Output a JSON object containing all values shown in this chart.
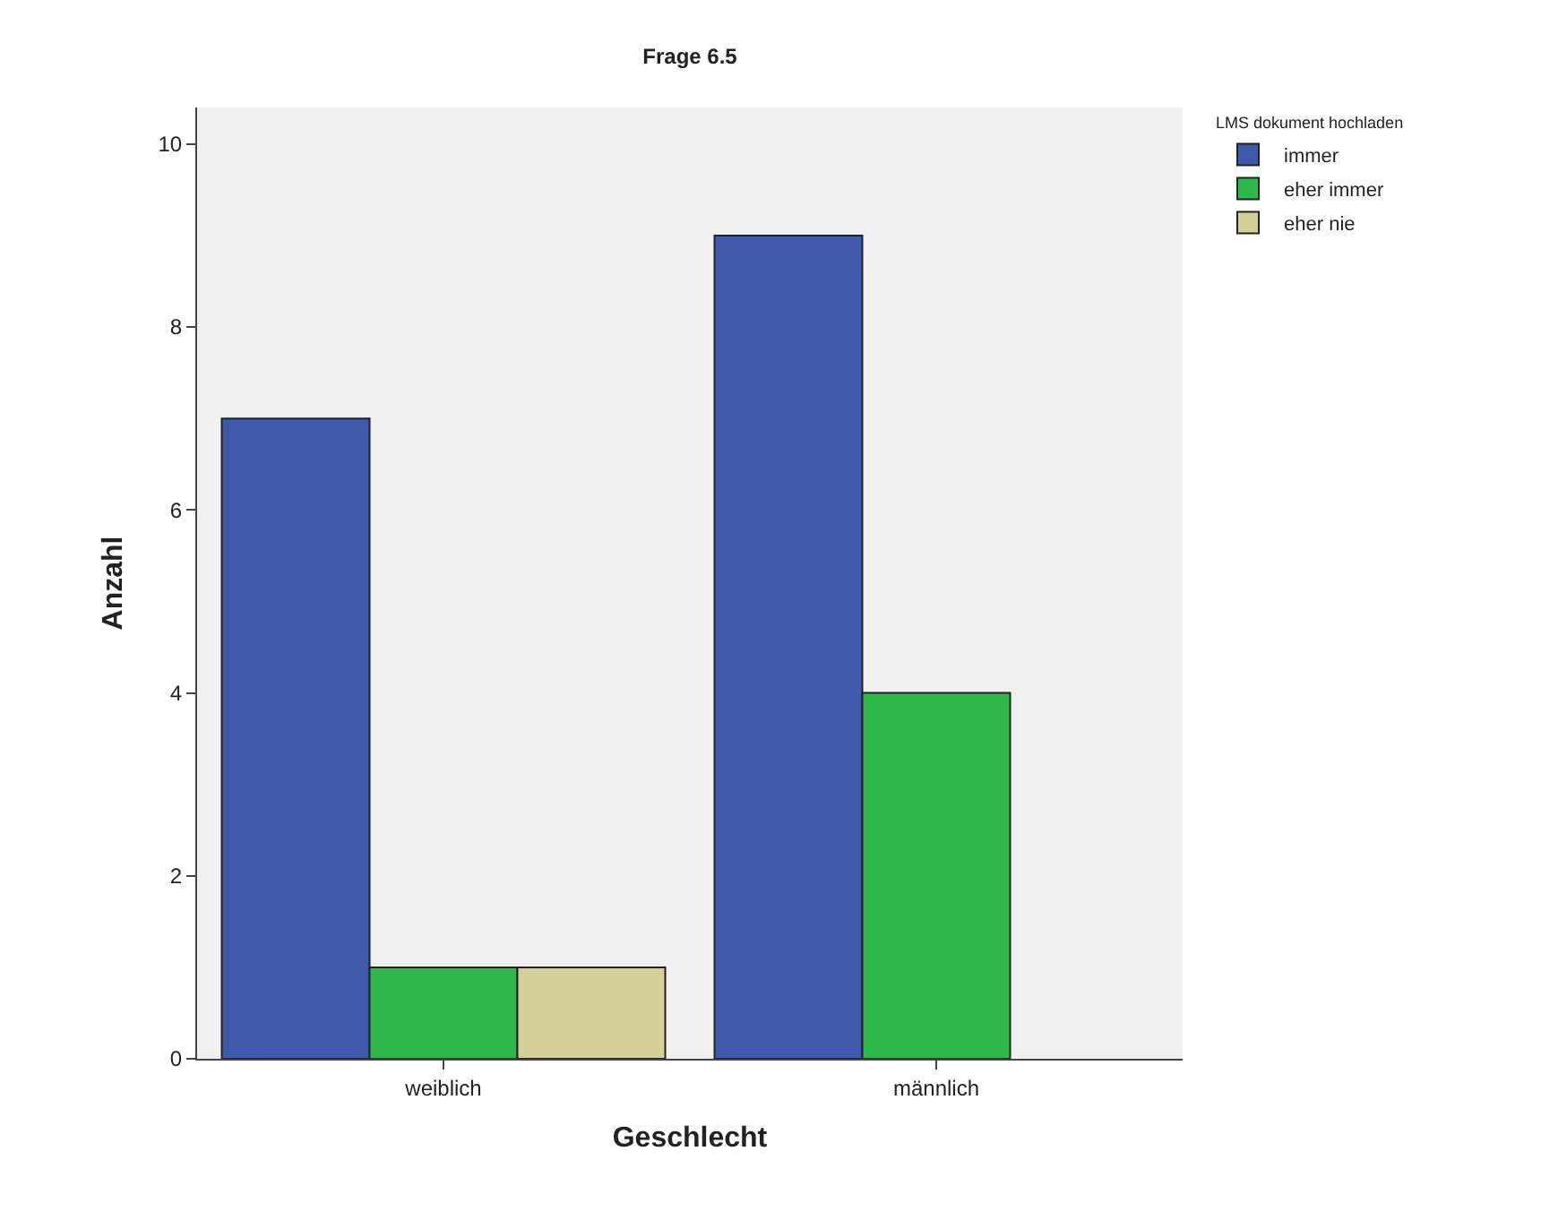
{
  "chart_data": {
    "type": "bar",
    "title": "Frage 6.5",
    "xlabel": "Geschlecht",
    "ylabel": "Anzahl",
    "legend_title": "LMS dokument hochladen",
    "categories": [
      "weiblich",
      "männlich"
    ],
    "series": [
      {
        "name": "immer",
        "color": "#3e59aa",
        "values": [
          7,
          9
        ]
      },
      {
        "name": "eher immer",
        "color": "#2eb84a",
        "values": [
          1,
          4
        ]
      },
      {
        "name": "eher nie",
        "color": "#d5d09a",
        "values": [
          1,
          null
        ]
      }
    ],
    "ylim": [
      0,
      10.4
    ],
    "yticks": [
      0,
      2,
      4,
      6,
      8,
      10
    ],
    "grid": false,
    "legend": "top right"
  }
}
